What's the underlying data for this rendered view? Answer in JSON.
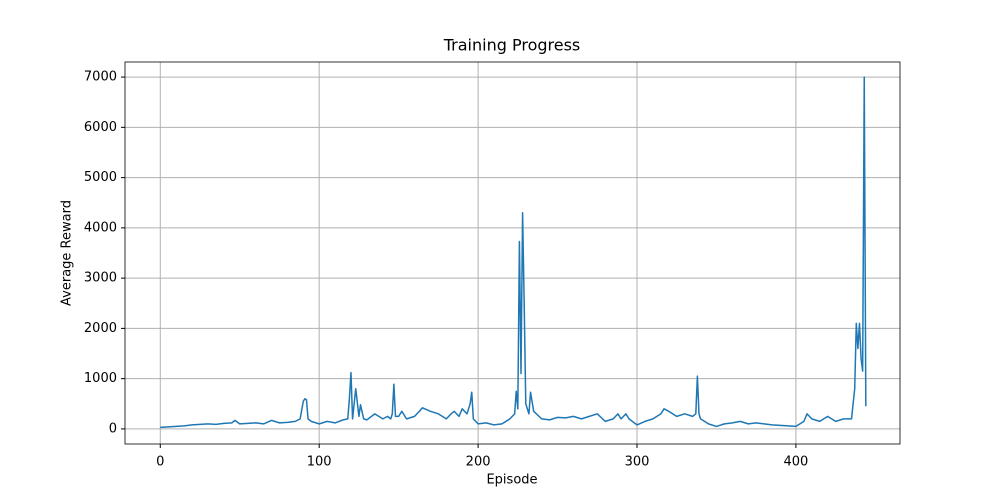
{
  "chart_data": {
    "type": "line",
    "title": "Training Progress",
    "xlabel": "Episode",
    "ylabel": "Average Reward",
    "x": [
      0,
      5,
      10,
      15,
      20,
      25,
      30,
      35,
      40,
      45,
      47,
      50,
      55,
      60,
      65,
      70,
      75,
      80,
      85,
      88,
      90,
      91,
      92,
      93,
      95,
      100,
      105,
      110,
      115,
      118,
      119,
      120,
      121,
      122,
      123,
      125,
      126,
      128,
      130,
      135,
      140,
      143,
      145,
      146,
      147,
      148,
      150,
      152,
      155,
      160,
      163,
      165,
      170,
      175,
      180,
      183,
      185,
      188,
      190,
      193,
      195,
      196,
      197,
      200,
      205,
      210,
      215,
      220,
      223,
      224,
      225,
      226,
      227,
      228,
      229,
      230,
      232,
      233,
      235,
      240,
      245,
      250,
      255,
      260,
      265,
      270,
      275,
      280,
      285,
      288,
      290,
      293,
      295,
      300,
      305,
      310,
      315,
      317,
      320,
      325,
      330,
      335,
      337,
      338,
      339,
      340,
      345,
      350,
      355,
      360,
      365,
      370,
      375,
      380,
      385,
      390,
      395,
      400,
      405,
      407,
      410,
      415,
      420,
      425,
      430,
      435,
      437,
      438,
      439,
      440,
      441,
      442,
      443,
      444
    ],
    "values": [
      30,
      40,
      50,
      60,
      80,
      90,
      100,
      90,
      110,
      120,
      170,
      100,
      110,
      120,
      100,
      170,
      120,
      130,
      150,
      200,
      550,
      600,
      580,
      200,
      150,
      100,
      150,
      120,
      180,
      200,
      600,
      1120,
      200,
      500,
      800,
      250,
      480,
      200,
      180,
      300,
      200,
      250,
      200,
      300,
      890,
      250,
      250,
      350,
      200,
      250,
      350,
      420,
      350,
      300,
      200,
      300,
      350,
      250,
      400,
      300,
      500,
      730,
      200,
      100,
      120,
      80,
      100,
      200,
      300,
      750,
      400,
      3730,
      1100,
      4300,
      2500,
      500,
      300,
      730,
      350,
      200,
      180,
      230,
      220,
      250,
      200,
      250,
      300,
      150,
      200,
      300,
      200,
      300,
      200,
      80,
      150,
      200,
      300,
      400,
      350,
      250,
      300,
      250,
      300,
      1050,
      300,
      200,
      100,
      50,
      100,
      120,
      150,
      100,
      120,
      100,
      80,
      70,
      60,
      50,
      150,
      300,
      200,
      150,
      250,
      150,
      200,
      200,
      800,
      2100,
      1600,
      2100,
      1400,
      1150,
      7000,
      450
    ],
    "color": "#1f77b4",
    "xlim": [
      -22.2,
      465.5
    ],
    "ylim": [
      -300,
      7300
    ],
    "xticks": [
      0,
      100,
      200,
      300,
      400
    ],
    "yticks": [
      0,
      1000,
      2000,
      3000,
      4000,
      5000,
      6000,
      7000
    ],
    "grid": true
  }
}
